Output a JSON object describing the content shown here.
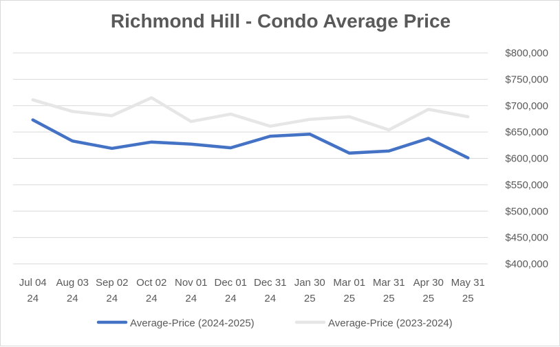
{
  "chart_data": {
    "type": "line",
    "title": "Richmond Hill - Condo Average Price",
    "xlabel": "",
    "ylabel": "",
    "categories": [
      [
        "Jul 04",
        "24"
      ],
      [
        "Aug 03",
        "24"
      ],
      [
        "Sep 02",
        "24"
      ],
      [
        "Oct 02",
        "24"
      ],
      [
        "Nov 01",
        "24"
      ],
      [
        "Dec 01",
        "24"
      ],
      [
        "Dec 31",
        "24"
      ],
      [
        "Jan 30",
        "25"
      ],
      [
        "Mar 01",
        "25"
      ],
      [
        "Mar 31",
        "25"
      ],
      [
        "Apr 30",
        "25"
      ],
      [
        "May 31",
        "25"
      ]
    ],
    "ylim": [
      400000,
      800000
    ],
    "yticks": [
      400000,
      450000,
      500000,
      550000,
      600000,
      650000,
      700000,
      750000,
      800000
    ],
    "ytick_labels": [
      "$400,000",
      "$450,000",
      "$500,000",
      "$550,000",
      "$600,000",
      "$650,000",
      "$700,000",
      "$750,000",
      "$800,000"
    ],
    "grid": true,
    "legend_position": "bottom",
    "series": [
      {
        "name": "Average-Price (2024-2025)",
        "color": "#4472c4",
        "values": [
          673000,
          633000,
          619000,
          631000,
          627000,
          620000,
          642000,
          646000,
          610000,
          614000,
          638000,
          601000
        ]
      },
      {
        "name": "Average-Price (2023-2024)",
        "color": "#e7e6e6",
        "values": [
          711000,
          689000,
          681000,
          715000,
          670000,
          684000,
          661000,
          674000,
          679000,
          654000,
          693000,
          679000
        ]
      }
    ]
  }
}
